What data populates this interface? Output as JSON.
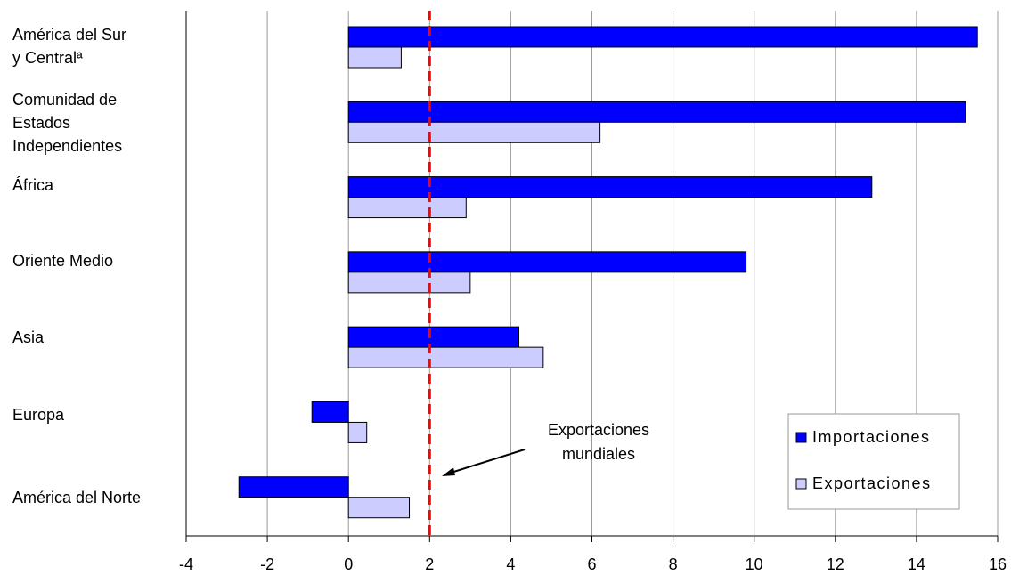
{
  "chart_data": {
    "type": "bar",
    "orientation": "horizontal",
    "title": "",
    "xlabel": "",
    "ylabel": "",
    "xlim": [
      -4,
      16
    ],
    "xticks": [
      -4,
      -2,
      0,
      2,
      4,
      6,
      8,
      10,
      12,
      14,
      16
    ],
    "grid": "vertical",
    "categories": [
      "América del Sur\ny Centralª",
      "Comunidad de\nEstados\nIndependientes",
      "África",
      "Oriente Medio",
      "Asia",
      "Europa",
      "América del Norte"
    ],
    "series": [
      {
        "name": "Importaciones",
        "color": "#0000ff",
        "values": [
          15.5,
          15.2,
          12.9,
          9.8,
          4.2,
          -0.9,
          -2.7
        ]
      },
      {
        "name": "Exportaciones",
        "color": "#ccccff",
        "values": [
          1.3,
          6.2,
          2.9,
          3.0,
          4.8,
          0.45,
          1.5
        ]
      }
    ],
    "reference_line": {
      "x": 2,
      "color": "#ff0000",
      "style": "dashed"
    },
    "annotation": {
      "text_lines": [
        "Exportaciones",
        "mundiales"
      ]
    },
    "legend_position": "bottom-right"
  }
}
